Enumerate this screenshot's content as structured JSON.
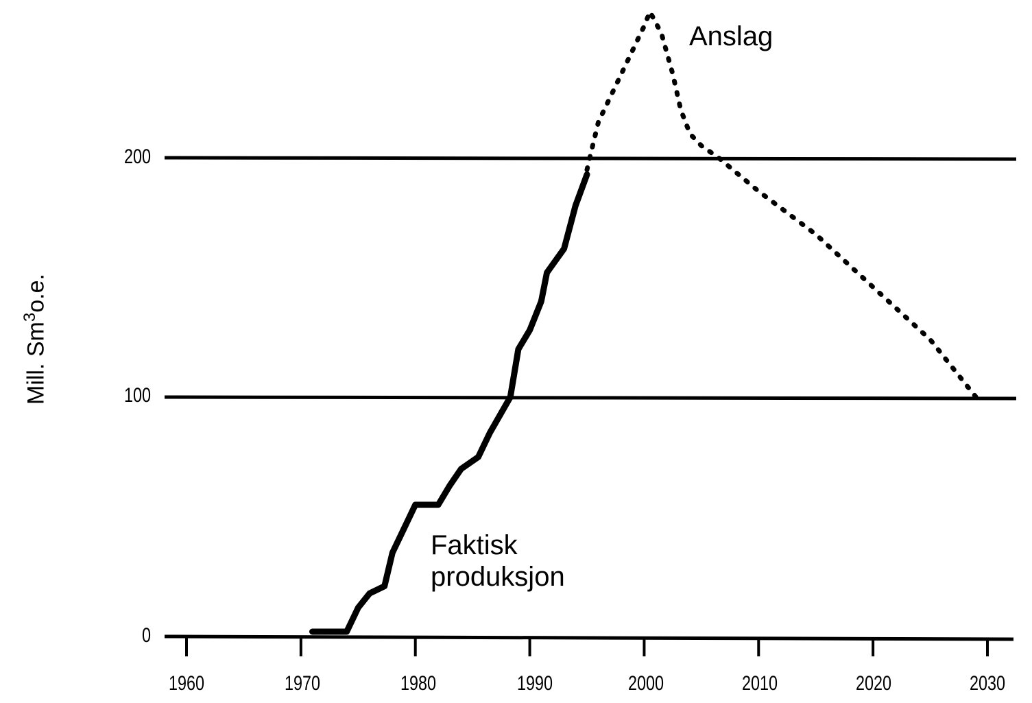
{
  "chart_data": {
    "type": "line",
    "title": "",
    "xlabel": "",
    "ylabel": "Mill. Sm3o.e.",
    "ylabel_parts": {
      "main": "Mill. Sm",
      "sup": "3",
      "tail": "o.e."
    },
    "xlim": [
      1958,
      2032
    ],
    "ylim": [
      0,
      265
    ],
    "x_ticks": [
      1960,
      1970,
      1980,
      1990,
      2000,
      2010,
      2020,
      2030
    ],
    "x_tick_labels": [
      "1960",
      "1970",
      "1980",
      "1990",
      "2000",
      "2010",
      "2020",
      "2030"
    ],
    "y_ticks": [
      0,
      100,
      200
    ],
    "y_tick_labels": [
      "0",
      "100",
      "200"
    ],
    "grid": {
      "horizontal": [
        100,
        200
      ],
      "vertical": false
    },
    "legend": null,
    "annotations": [
      {
        "text": "Anslag",
        "x": 2004,
        "y": 250
      },
      {
        "text": "Faktisk",
        "x": 1981,
        "y": 38
      },
      {
        "text": "produksjon",
        "x": 1981,
        "y": 26
      }
    ],
    "series": [
      {
        "name": "Faktisk produksjon",
        "style": "solid",
        "x": [
          1971,
          1974,
          1975,
          1976,
          1977.3,
          1978,
          1979,
          1980,
          1982,
          1983,
          1984,
          1985.5,
          1986.5,
          1988.3,
          1989,
          1990,
          1991,
          1991.5,
          1993,
          1994,
          1995
        ],
        "y": [
          2,
          2,
          12,
          18,
          21,
          35,
          45,
          55,
          55,
          63,
          70,
          75,
          85,
          100,
          120,
          128,
          140,
          152,
          162,
          180,
          193
        ]
      },
      {
        "name": "Anslag",
        "style": "dotted",
        "x": [
          1995,
          1995.5,
          1996,
          1997,
          1998.5,
          2000,
          2000.5,
          2001.5,
          2002.5,
          2003.2,
          2004,
          2005,
          2006.5,
          2010,
          2015,
          2020,
          2025,
          2029
        ],
        "y": [
          195,
          205,
          215,
          225,
          240,
          255,
          261,
          252,
          235,
          220,
          210,
          205,
          200,
          186,
          168,
          146,
          124,
          100
        ]
      }
    ]
  }
}
